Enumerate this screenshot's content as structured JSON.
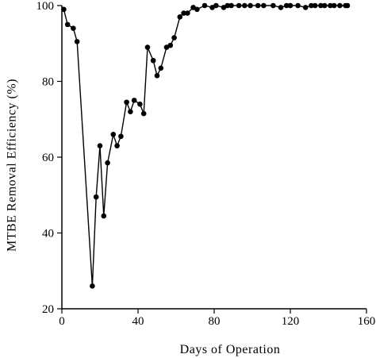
{
  "chart_data": {
    "type": "line",
    "title": "",
    "xlabel": "Days of Operation",
    "ylabel": "MTBE Removal Efficiency (%)",
    "xlim": [
      0,
      160
    ],
    "ylim": [
      20,
      100
    ],
    "xticks": [
      0,
      40,
      80,
      120,
      160
    ],
    "yticks": [
      20,
      40,
      60,
      80,
      100
    ],
    "grid": false,
    "legend": "none",
    "line_color": "#000000",
    "marker": "filled-circle",
    "series": [
      {
        "x": [
          1,
          3,
          6,
          8,
          16,
          18,
          20,
          22,
          24,
          27,
          29,
          31,
          34,
          36,
          38,
          41,
          43,
          45,
          48,
          50,
          52,
          55,
          57,
          59,
          62,
          64,
          66,
          69,
          71,
          75,
          79,
          81,
          85,
          87,
          89,
          93,
          96,
          99,
          103,
          106,
          111,
          115,
          118,
          120,
          124,
          128,
          131,
          133,
          136,
          138,
          141,
          143,
          146,
          149,
          150
        ],
        "y": [
          99,
          95,
          94,
          90.5,
          26,
          49.5,
          63,
          44.5,
          58.5,
          66,
          63,
          65.5,
          74.5,
          72,
          75,
          74,
          71.5,
          89,
          85.5,
          81.5,
          83.5,
          89,
          89.5,
          91.5,
          97,
          98,
          98,
          99.5,
          99,
          100,
          99.5,
          100,
          99.5,
          100,
          100,
          100,
          100,
          100,
          100,
          100,
          100,
          99.5,
          100,
          100,
          100,
          99.5,
          100,
          100,
          100,
          100,
          100,
          100,
          100,
          100,
          100
        ]
      }
    ]
  }
}
